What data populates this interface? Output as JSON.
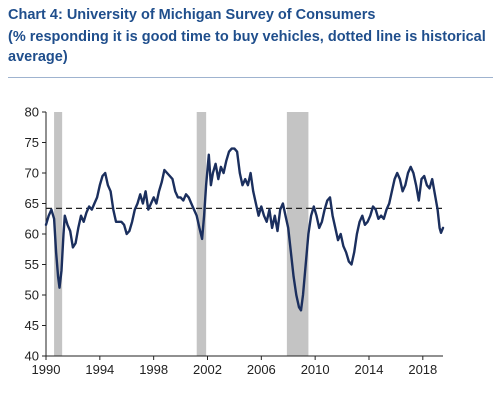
{
  "chart_data": {
    "type": "line",
    "title": "Chart 4: University of Michigan Survey of Consumers",
    "subtitle": "(% responding it is good time to buy vehicles, dotted line is historical average)",
    "xlabel": "",
    "ylabel": "",
    "xlim": [
      1990,
      2019.5
    ],
    "ylim": [
      40,
      80
    ],
    "x_ticks": [
      1990,
      1994,
      1998,
      2002,
      2006,
      2010,
      2014,
      2018
    ],
    "y_ticks": [
      40,
      45,
      50,
      55,
      60,
      65,
      70,
      75,
      80
    ],
    "grid": false,
    "legend": "none",
    "reference_lines": [
      {
        "y": 64.2,
        "style": "dashed",
        "color": "#222222"
      }
    ],
    "shaded_periods": [
      {
        "start": 1990.6,
        "end": 1991.2
      },
      {
        "start": 2001.2,
        "end": 2001.9
      },
      {
        "start": 2007.9,
        "end": 2009.5
      }
    ],
    "series": [
      {
        "color": "#1b2f5e",
        "points": [
          [
            1990.0,
            61.5
          ],
          [
            1990.2,
            63
          ],
          [
            1990.4,
            64
          ],
          [
            1990.6,
            62.5
          ],
          [
            1990.75,
            57
          ],
          [
            1990.9,
            53
          ],
          [
            1991.0,
            51.2
          ],
          [
            1991.15,
            54
          ],
          [
            1991.3,
            60
          ],
          [
            1991.4,
            63
          ],
          [
            1991.6,
            61.5
          ],
          [
            1991.8,
            60.5
          ],
          [
            1992.0,
            57.8
          ],
          [
            1992.2,
            58.5
          ],
          [
            1992.4,
            61
          ],
          [
            1992.6,
            63
          ],
          [
            1992.8,
            62
          ],
          [
            1993.0,
            63.5
          ],
          [
            1993.2,
            64.5
          ],
          [
            1993.4,
            64
          ],
          [
            1993.6,
            65
          ],
          [
            1993.8,
            66
          ],
          [
            1994.0,
            68
          ],
          [
            1994.2,
            69.5
          ],
          [
            1994.4,
            70
          ],
          [
            1994.6,
            68
          ],
          [
            1994.8,
            67
          ],
          [
            1995.0,
            64
          ],
          [
            1995.2,
            62
          ],
          [
            1995.4,
            62
          ],
          [
            1995.6,
            62
          ],
          [
            1995.8,
            61.5
          ],
          [
            1996.0,
            60
          ],
          [
            1996.2,
            60.5
          ],
          [
            1996.4,
            62
          ],
          [
            1996.6,
            64
          ],
          [
            1996.8,
            65
          ],
          [
            1997.0,
            66.5
          ],
          [
            1997.2,
            65
          ],
          [
            1997.4,
            67
          ],
          [
            1997.6,
            64
          ],
          [
            1997.8,
            65
          ],
          [
            1998.0,
            66
          ],
          [
            1998.2,
            65
          ],
          [
            1998.4,
            67
          ],
          [
            1998.6,
            68.5
          ],
          [
            1998.8,
            70.5
          ],
          [
            1999.0,
            70
          ],
          [
            1999.2,
            69.5
          ],
          [
            1999.4,
            69
          ],
          [
            1999.6,
            67
          ],
          [
            1999.8,
            66
          ],
          [
            2000.0,
            66
          ],
          [
            2000.2,
            65.5
          ],
          [
            2000.4,
            66.5
          ],
          [
            2000.6,
            66
          ],
          [
            2000.8,
            65
          ],
          [
            2001.0,
            64
          ],
          [
            2001.2,
            63
          ],
          [
            2001.4,
            61
          ],
          [
            2001.6,
            59.2
          ],
          [
            2001.75,
            63
          ],
          [
            2001.9,
            68
          ],
          [
            2002.1,
            73
          ],
          [
            2002.25,
            68
          ],
          [
            2002.4,
            70
          ],
          [
            2002.6,
            71.5
          ],
          [
            2002.8,
            69
          ],
          [
            2003.0,
            71
          ],
          [
            2003.2,
            70
          ],
          [
            2003.4,
            72
          ],
          [
            2003.6,
            73.5
          ],
          [
            2003.8,
            74
          ],
          [
            2004.0,
            74
          ],
          [
            2004.2,
            73.5
          ],
          [
            2004.4,
            70
          ],
          [
            2004.6,
            68
          ],
          [
            2004.8,
            69
          ],
          [
            2005.0,
            68
          ],
          [
            2005.2,
            70
          ],
          [
            2005.4,
            67
          ],
          [
            2005.6,
            65
          ],
          [
            2005.8,
            63
          ],
          [
            2006.0,
            64.5
          ],
          [
            2006.2,
            63
          ],
          [
            2006.4,
            62
          ],
          [
            2006.6,
            64
          ],
          [
            2006.8,
            61
          ],
          [
            2007.0,
            63
          ],
          [
            2007.2,
            60.5
          ],
          [
            2007.4,
            64
          ],
          [
            2007.6,
            65
          ],
          [
            2007.8,
            63
          ],
          [
            2008.0,
            61
          ],
          [
            2008.2,
            57
          ],
          [
            2008.4,
            53
          ],
          [
            2008.6,
            50
          ],
          [
            2008.8,
            48
          ],
          [
            2008.95,
            47.5
          ],
          [
            2009.1,
            50
          ],
          [
            2009.3,
            55
          ],
          [
            2009.5,
            60
          ],
          [
            2009.7,
            63
          ],
          [
            2009.9,
            64.5
          ],
          [
            2010.1,
            63
          ],
          [
            2010.3,
            61
          ],
          [
            2010.5,
            62
          ],
          [
            2010.7,
            64
          ],
          [
            2010.9,
            65.5
          ],
          [
            2011.1,
            66
          ],
          [
            2011.3,
            63
          ],
          [
            2011.5,
            61
          ],
          [
            2011.7,
            59
          ],
          [
            2011.9,
            60
          ],
          [
            2012.1,
            58
          ],
          [
            2012.3,
            57
          ],
          [
            2012.5,
            55.5
          ],
          [
            2012.7,
            55
          ],
          [
            2012.9,
            57
          ],
          [
            2013.1,
            60
          ],
          [
            2013.3,
            62
          ],
          [
            2013.5,
            63
          ],
          [
            2013.7,
            61.5
          ],
          [
            2013.9,
            62
          ],
          [
            2014.1,
            63
          ],
          [
            2014.3,
            64.5
          ],
          [
            2014.5,
            64
          ],
          [
            2014.7,
            62.5
          ],
          [
            2014.9,
            63
          ],
          [
            2015.1,
            62.5
          ],
          [
            2015.3,
            64
          ],
          [
            2015.5,
            65
          ],
          [
            2015.7,
            67
          ],
          [
            2015.9,
            69
          ],
          [
            2016.1,
            70
          ],
          [
            2016.3,
            69
          ],
          [
            2016.5,
            67
          ],
          [
            2016.7,
            68
          ],
          [
            2016.9,
            70
          ],
          [
            2017.1,
            71
          ],
          [
            2017.3,
            70
          ],
          [
            2017.5,
            68
          ],
          [
            2017.7,
            65.5
          ],
          [
            2017.9,
            69
          ],
          [
            2018.1,
            69.5
          ],
          [
            2018.3,
            68
          ],
          [
            2018.5,
            67.5
          ],
          [
            2018.7,
            69
          ],
          [
            2018.9,
            66.5
          ],
          [
            2019.1,
            64
          ],
          [
            2019.25,
            61
          ],
          [
            2019.35,
            60.2
          ],
          [
            2019.5,
            61
          ]
        ]
      }
    ]
  }
}
